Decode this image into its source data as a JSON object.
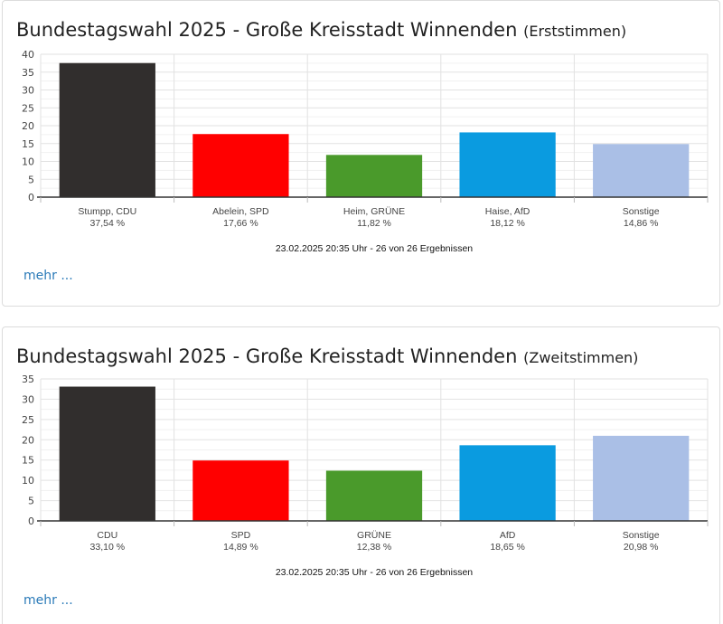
{
  "panels": [
    {
      "title": "Bundestagswahl 2025 - Große Kreisstadt Winnenden",
      "subtitle": "(Erststimmen)",
      "more_label": "mehr ...",
      "note": "23.02.2025 20:35 Uhr - 26 von 26 Ergebnissen"
    },
    {
      "title": "Bundestagswahl 2025 - Große Kreisstadt Winnenden",
      "subtitle": "(Zweitstimmen)",
      "more_label": "mehr ...",
      "note": "23.02.2025 20:35 Uhr - 26 von 26 Ergebnissen"
    }
  ],
  "chart_data": [
    {
      "type": "bar",
      "title": "Bundestagswahl 2025 - Große Kreisstadt Winnenden (Erststimmen)",
      "categories": [
        "Stumpp, CDU",
        "Abelein, SPD",
        "Heim, GRÜNE",
        "Haise, AfD",
        "Sonstige"
      ],
      "values": [
        37.54,
        17.66,
        11.82,
        18.12,
        14.86
      ],
      "value_labels": [
        "37,54 %",
        "17,66 %",
        "11,82 %",
        "18,12 %",
        "14,86 %"
      ],
      "colors": [
        "#312e2d",
        "#ff0000",
        "#4a9a2b",
        "#0a9be0",
        "#aabfe6"
      ],
      "yticks": [
        0,
        5,
        10,
        15,
        20,
        25,
        30,
        35,
        40
      ],
      "ylim": [
        0,
        40
      ],
      "grid": true,
      "legend": "none"
    },
    {
      "type": "bar",
      "title": "Bundestagswahl 2025 - Große Kreisstadt Winnenden (Zweitstimmen)",
      "categories": [
        "CDU",
        "SPD",
        "GRÜNE",
        "AfD",
        "Sonstige"
      ],
      "values": [
        33.1,
        14.89,
        12.38,
        18.65,
        20.98
      ],
      "value_labels": [
        "33,10 %",
        "14,89 %",
        "12,38 %",
        "18,65 %",
        "20,98 %"
      ],
      "colors": [
        "#312e2d",
        "#ff0000",
        "#4a9a2b",
        "#0a9be0",
        "#aabfe6"
      ],
      "yticks": [
        0,
        5,
        10,
        15,
        20,
        25,
        30,
        35
      ],
      "ylim": [
        0,
        35
      ],
      "grid": true,
      "legend": "none"
    }
  ]
}
